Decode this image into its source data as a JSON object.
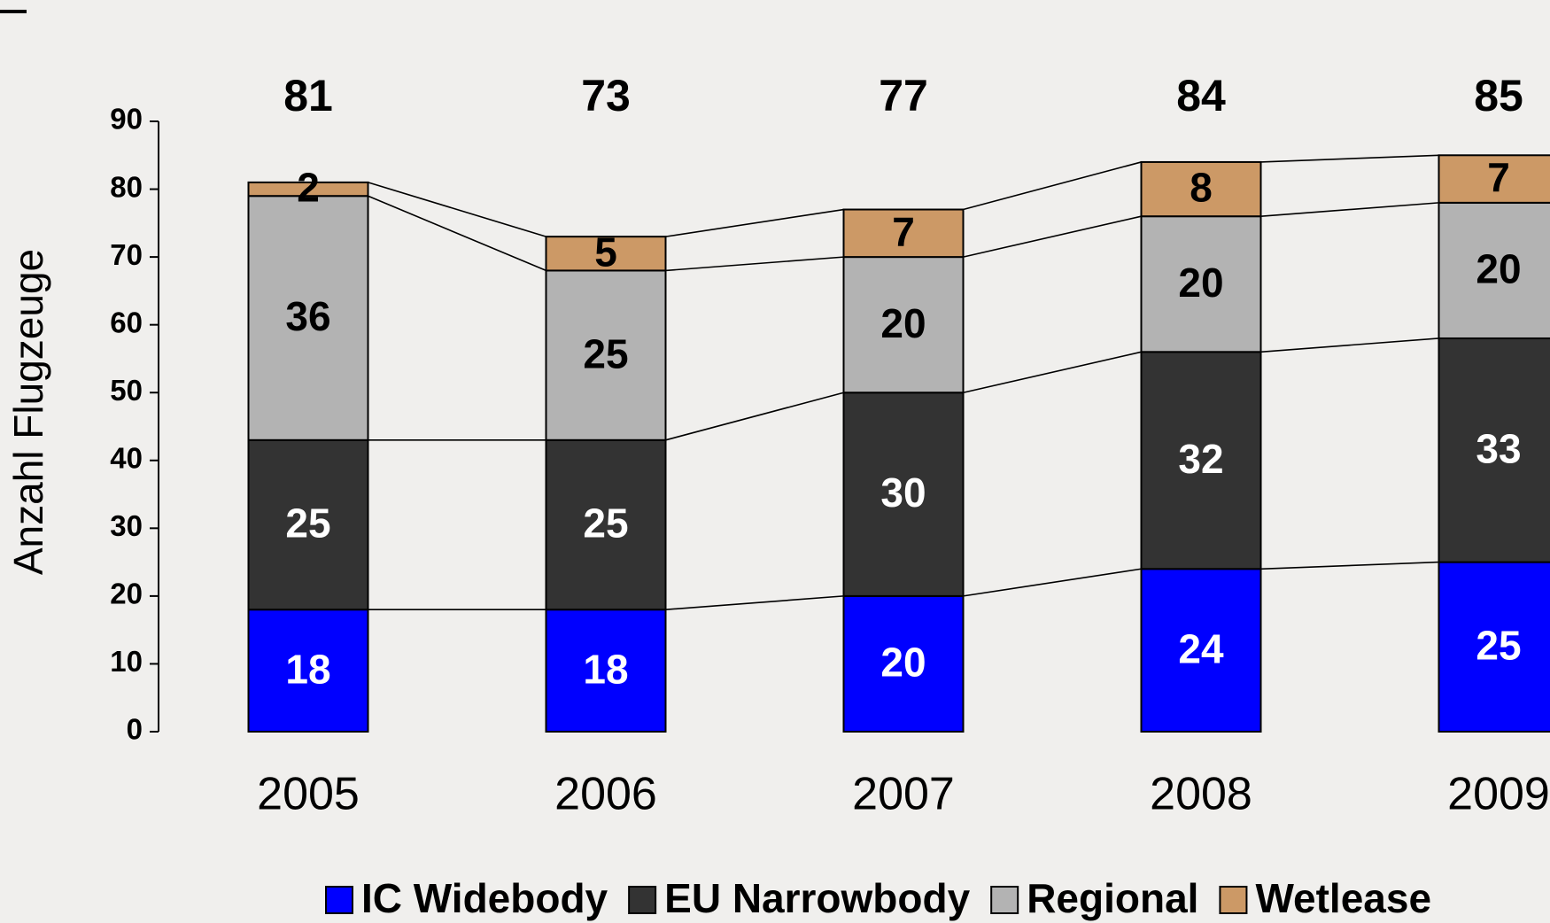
{
  "chart_data": {
    "type": "stacked_bar",
    "y_label": "Anzahl Flugzeuge",
    "categories": [
      "2005",
      "2006",
      "2007",
      "2008",
      "2009"
    ],
    "series": [
      {
        "name": "IC Widebody",
        "color": "#0000ff",
        "values": [
          18,
          18,
          20,
          24,
          25
        ]
      },
      {
        "name": "EU Narrowbody",
        "color": "#333333",
        "values": [
          25,
          25,
          30,
          32,
          33
        ]
      },
      {
        "name": "Regional",
        "color": "#b3b3b3",
        "values": [
          36,
          25,
          20,
          20,
          20
        ]
      },
      {
        "name": "Wetlease",
        "color": "#cc9966",
        "values": [
          2,
          5,
          7,
          8,
          7
        ]
      }
    ],
    "totals": [
      81,
      73,
      77,
      84,
      85
    ],
    "ylim": [
      0,
      90
    ],
    "yticks": [
      0,
      10,
      20,
      30,
      40,
      50,
      60,
      70,
      80,
      90
    ],
    "legend": "bottom"
  }
}
